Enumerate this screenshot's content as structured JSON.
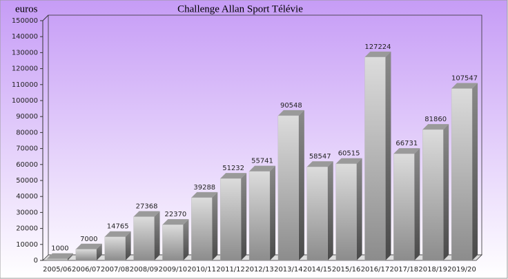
{
  "chart_data": {
    "type": "bar3d",
    "title": "Challenge Allan Sport Télévie",
    "y_label": "euros",
    "categories": [
      "2005/06",
      "2006/07",
      "2007/08",
      "2008/09",
      "2009/10",
      "2010/11",
      "2011/12",
      "2012/13",
      "2013/14",
      "2014/15",
      "2015/16",
      "2016/17",
      "2017/18",
      "2018/19",
      "2019/20"
    ],
    "values": [
      1000,
      7000,
      14765,
      27368,
      22370,
      39288,
      51232,
      55741,
      90548,
      58547,
      60515,
      127224,
      66731,
      81860,
      107547
    ],
    "color": "#b0b0b0",
    "ylim": [
      0,
      150000
    ],
    "yticks": [
      0,
      10000,
      20000,
      30000,
      40000,
      50000,
      60000,
      70000,
      80000,
      90000,
      100000,
      110000,
      120000,
      130000,
      140000,
      150000
    ]
  }
}
